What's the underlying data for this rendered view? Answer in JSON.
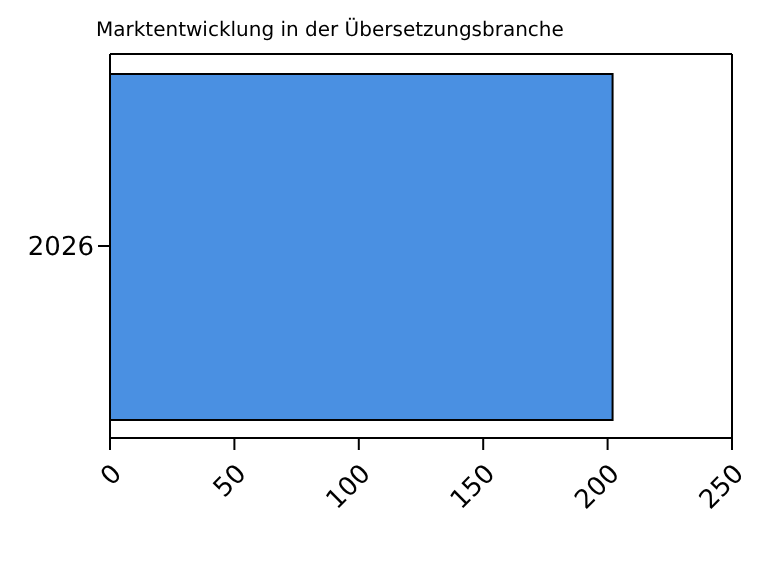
{
  "chart_data": {
    "type": "bar",
    "orientation": "horizontal",
    "title": "Marktentwicklung in der Übersetzungsbranche",
    "categories": [
      "2026"
    ],
    "series": [
      {
        "color": "#4a90e2",
        "values": [
          202
        ]
      }
    ],
    "xlim": [
      0,
      250
    ],
    "xticks": [
      0,
      50,
      100,
      150,
      200,
      250
    ],
    "legend": false
  }
}
